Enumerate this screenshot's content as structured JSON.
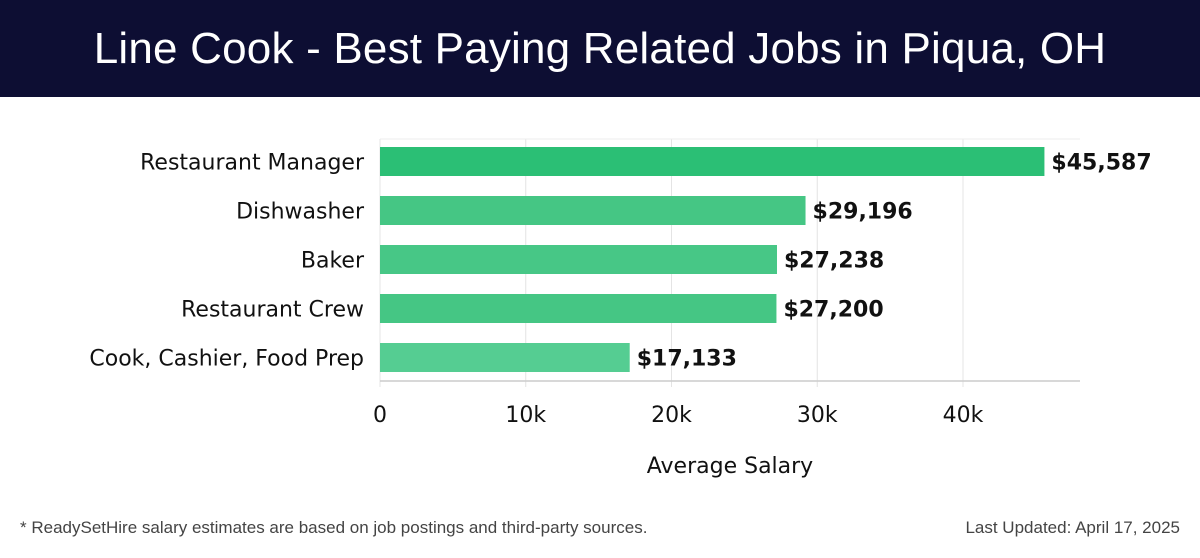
{
  "header": {
    "title": "Line Cook - Best Paying Related Jobs in Piqua, OH"
  },
  "chart_data": {
    "type": "bar",
    "orientation": "horizontal",
    "categories": [
      "Restaurant Manager",
      "Dishwasher",
      "Baker",
      "Restaurant Crew",
      "Cook, Cashier, Food Prep"
    ],
    "values": [
      45587,
      29196,
      27238,
      27200,
      17133
    ],
    "value_labels": [
      "$45,587",
      "$29,196",
      "$27,238",
      "$27,200",
      "$17,133"
    ],
    "xlabel": "Average Salary",
    "xticks": [
      0,
      10000,
      20000,
      30000,
      40000
    ],
    "xtick_labels": [
      "0",
      "10k",
      "20k",
      "30k",
      "40k"
    ],
    "xlim": [
      0,
      48000
    ],
    "grid": true,
    "colors": [
      "#2bbf75",
      "#45c684",
      "#47c786",
      "#45c684",
      "#55cd92"
    ]
  },
  "footer": {
    "note": "* ReadySetHire salary estimates are based on job postings and third-party sources.",
    "updated": "Last Updated: April 17, 2025"
  }
}
